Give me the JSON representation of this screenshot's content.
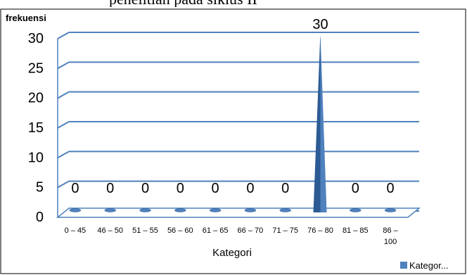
{
  "caption_top": "penelitian pada siklus II",
  "chart_data": {
    "type": "area",
    "ylabel": "frekuensi",
    "xlabel": "Kategori",
    "categories": [
      "0 – 45",
      "46 – 50",
      "51 – 55",
      "56 – 60",
      "61 – 65",
      "66 – 70",
      "71 – 75",
      "76 – 80",
      "81 – 85",
      "86 – 100"
    ],
    "series": [
      {
        "name": "Kategor...",
        "values": [
          0,
          0,
          0,
          0,
          0,
          0,
          0,
          30,
          0,
          0
        ]
      }
    ],
    "ylim": [
      0,
      30
    ],
    "yticks": [
      0,
      5,
      10,
      15,
      20,
      25,
      30
    ],
    "grid": true,
    "legend": "bottom-right",
    "colors": {
      "series": "#4f81bd",
      "series_dark": "#2c5a94",
      "grid": "#4f81bd",
      "frame": "#000000"
    }
  }
}
